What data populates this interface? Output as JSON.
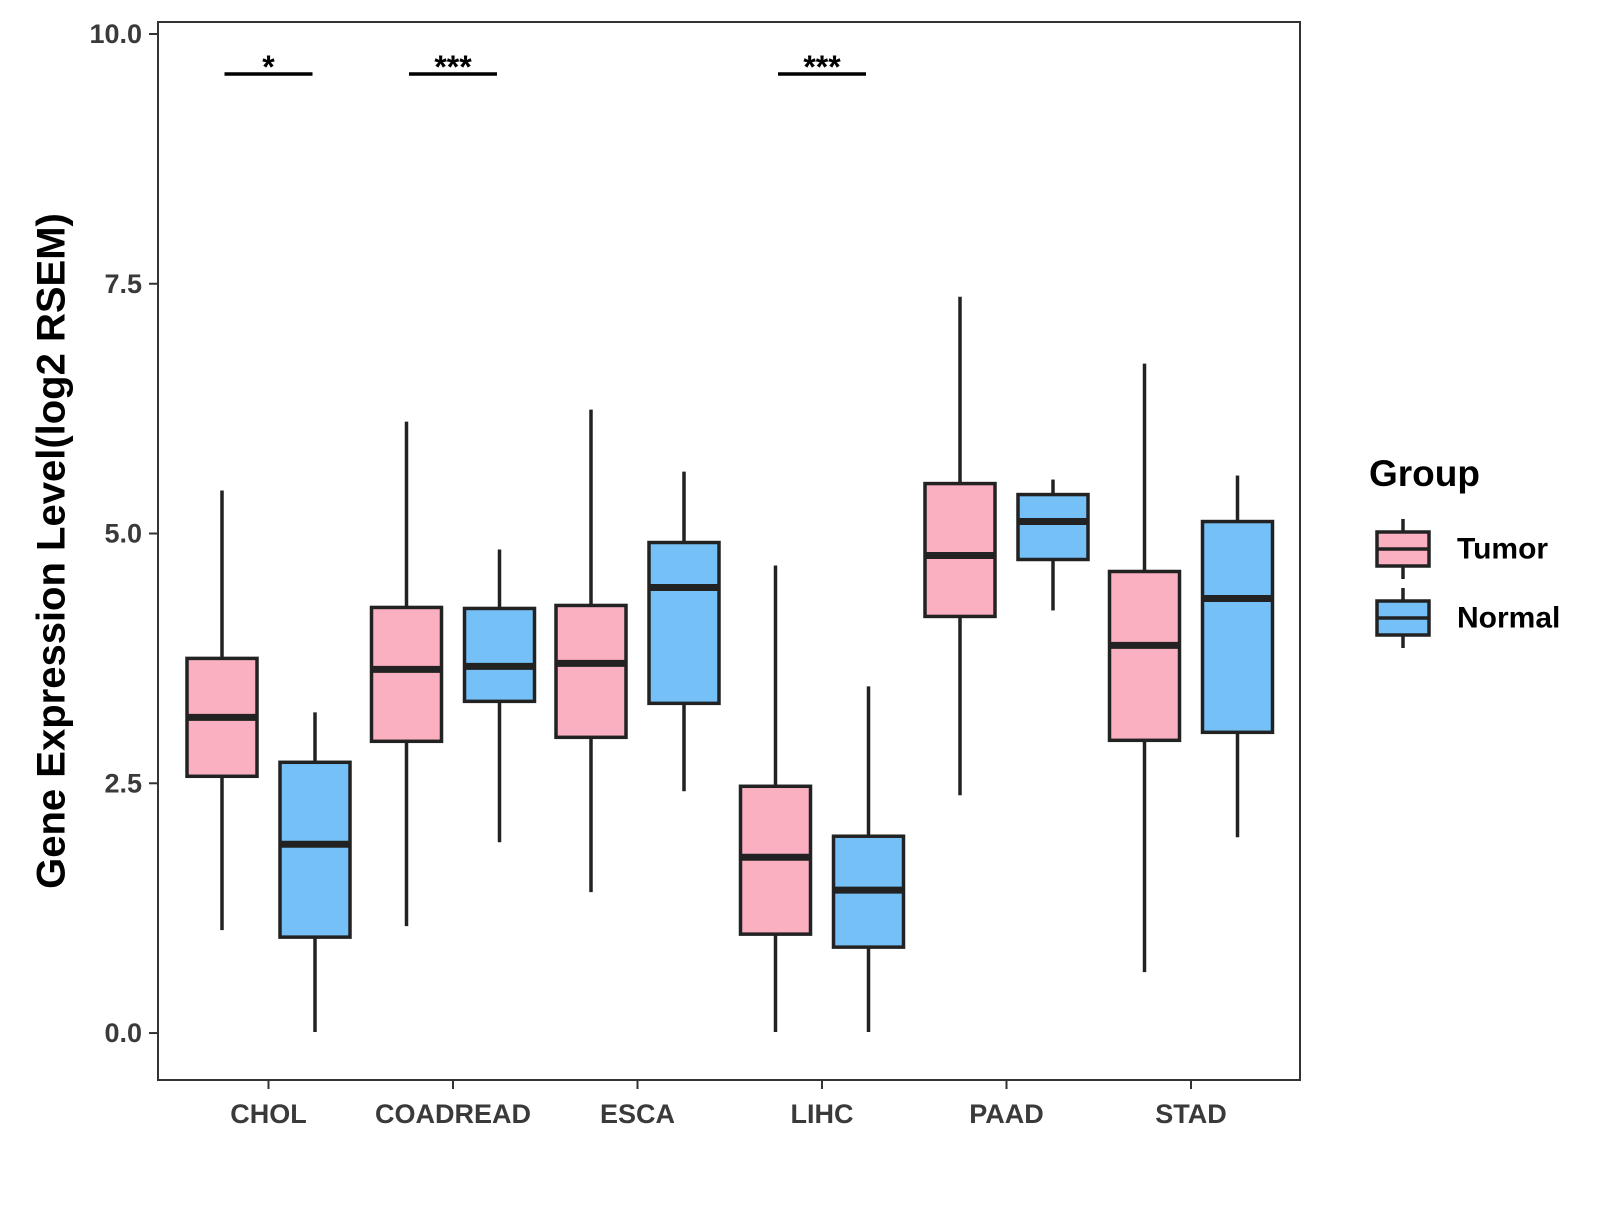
{
  "chart_data": {
    "type": "boxplot",
    "title": "",
    "xlabel": "",
    "ylabel": "Gene Expression Level(log2 RSEM)",
    "ylim": [
      -0.47,
      10.12
    ],
    "yticks": [
      0.0,
      2.5,
      5.0,
      7.5,
      10.0
    ],
    "ytick_labels": [
      "0.0",
      "2.5",
      "5.0",
      "7.5",
      "10.0"
    ],
    "categories": [
      "CHOL",
      "COADREAD",
      "ESCA",
      "LIHC",
      "PAAD",
      "STAD"
    ],
    "legend": {
      "title": "Group",
      "position": "right",
      "entries": [
        {
          "name": "Tumor",
          "color": "#FBB0C2"
        },
        {
          "name": "Normal",
          "color": "#75C1F7"
        }
      ]
    },
    "series": [
      {
        "name": "Tumor",
        "color": "#FBB0C2",
        "boxes": [
          {
            "min": 1.03,
            "q1": 2.57,
            "median": 3.16,
            "q3": 3.75,
            "max": 5.43
          },
          {
            "min": 1.07,
            "q1": 2.92,
            "median": 3.64,
            "q3": 4.26,
            "max": 6.12
          },
          {
            "min": 1.41,
            "q1": 2.96,
            "median": 3.7,
            "q3": 4.28,
            "max": 6.24
          },
          {
            "min": 0.01,
            "q1": 0.99,
            "median": 1.76,
            "q3": 2.47,
            "max": 4.68
          },
          {
            "min": 2.38,
            "q1": 4.17,
            "median": 4.78,
            "q3": 5.5,
            "max": 7.37
          },
          {
            "min": 0.61,
            "q1": 2.93,
            "median": 3.88,
            "q3": 4.62,
            "max": 6.7
          }
        ]
      },
      {
        "name": "Normal",
        "color": "#75C1F7",
        "boxes": [
          {
            "min": 0.01,
            "q1": 0.96,
            "median": 1.89,
            "q3": 2.71,
            "max": 3.21
          },
          {
            "min": 1.91,
            "q1": 3.32,
            "median": 3.67,
            "q3": 4.25,
            "max": 4.84
          },
          {
            "min": 2.42,
            "q1": 3.3,
            "median": 4.46,
            "q3": 4.91,
            "max": 5.62
          },
          {
            "min": 0.01,
            "q1": 0.86,
            "median": 1.43,
            "q3": 1.97,
            "max": 3.47
          },
          {
            "min": 4.23,
            "q1": 4.74,
            "median": 5.12,
            "q3": 5.39,
            "max": 5.54
          },
          {
            "min": 1.96,
            "q1": 3.01,
            "median": 4.35,
            "q3": 5.12,
            "max": 5.58
          }
        ]
      }
    ],
    "significance": [
      {
        "category": "CHOL",
        "label": "*",
        "y": 9.6
      },
      {
        "category": "COADREAD",
        "label": "***",
        "y": 9.6
      },
      {
        "category": "LIHC",
        "label": "***",
        "y": 9.6
      }
    ]
  }
}
